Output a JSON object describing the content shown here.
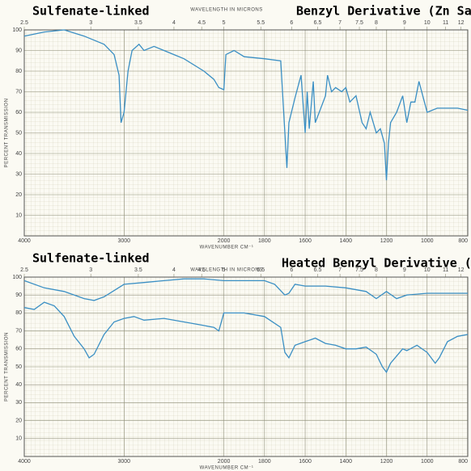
{
  "chart_data": [
    {
      "type": "line",
      "title": "Sulfenate-linked",
      "subtitle": "Benzyl Derivative (Zn Salt)",
      "x_label": "WAVENUMBER CM⁻¹",
      "x2_label": "WAVELENGTH IN MICRONS",
      "y_label": "PERCENT TRANSMISSION",
      "xlim": [
        4000,
        800
      ],
      "x_scale_break": 2000,
      "xticks": [
        4000,
        3000,
        2000,
        1800,
        1600,
        1400,
        1200,
        1000,
        800
      ],
      "x2ticks": [
        2.5,
        3,
        3.5,
        4,
        4.5,
        5,
        5.5,
        6,
        6.5,
        7,
        7.5,
        8,
        9,
        10,
        11,
        12
      ],
      "ylim": [
        0,
        100
      ],
      "yticks": [
        10,
        20,
        30,
        40,
        50,
        60,
        70,
        80,
        90,
        100
      ],
      "grid": true,
      "series": [
        {
          "color": "#3a8fc4",
          "x": [
            4000,
            3800,
            3600,
            3400,
            3200,
            3100,
            3050,
            3030,
            3000,
            2960,
            2920,
            2850,
            2800,
            2700,
            2600,
            2500,
            2400,
            2200,
            2100,
            2050,
            2000,
            1990,
            1950,
            1900,
            1800,
            1720,
            1700,
            1690,
            1680,
            1650,
            1620,
            1600,
            1590,
            1580,
            1560,
            1550,
            1500,
            1490,
            1470,
            1450,
            1420,
            1400,
            1380,
            1350,
            1320,
            1300,
            1280,
            1250,
            1230,
            1210,
            1200,
            1190,
            1180,
            1150,
            1120,
            1100,
            1080,
            1060,
            1040,
            1000,
            950,
            900,
            850,
            800
          ],
          "values": [
            97,
            99,
            100,
            97,
            93,
            88,
            78,
            55,
            60,
            80,
            90,
            93,
            90,
            92,
            90,
            88,
            86,
            80,
            76,
            72,
            71,
            88,
            90,
            87,
            86,
            85,
            50,
            33,
            55,
            67,
            78,
            50,
            70,
            52,
            75,
            55,
            68,
            78,
            70,
            72,
            70,
            72,
            65,
            68,
            55,
            52,
            60,
            50,
            52,
            45,
            27,
            45,
            55,
            60,
            68,
            55,
            65,
            65,
            75,
            60,
            62,
            62,
            62,
            61
          ]
        }
      ]
    },
    {
      "type": "line",
      "title": "Sulfenate-linked",
      "subtitle": "Heated Benzyl Derivative (Zn Salt)",
      "x_label": "WAVENUMBER CM⁻¹",
      "x2_label": "WAVELENGTH IN MICRONS",
      "y_label": "PERCENT TRANSMISSION",
      "xlim": [
        4000,
        800
      ],
      "x_scale_break": 2000,
      "xticks": [
        4000,
        3000,
        2000,
        1800,
        1600,
        1400,
        1200,
        1000,
        800
      ],
      "x2ticks": [
        2.5,
        3,
        3.5,
        4,
        4.5,
        5,
        5.5,
        6,
        6.5,
        7,
        7.5,
        8,
        9,
        10,
        11,
        12
      ],
      "ylim": [
        0,
        100
      ],
      "yticks": [
        10,
        20,
        30,
        40,
        50,
        60,
        70,
        80,
        90,
        100
      ],
      "grid": true,
      "series": [
        {
          "color": "#3a8fc4",
          "x": [
            4000,
            3800,
            3600,
            3400,
            3300,
            3200,
            3000,
            2800,
            2600,
            2400,
            2200,
            2000,
            1800,
            1750,
            1700,
            1680,
            1650,
            1600,
            1500,
            1400,
            1300,
            1250,
            1200,
            1150,
            1100,
            1000,
            900,
            800
          ],
          "values": [
            98,
            94,
            92,
            88,
            87,
            89,
            96,
            97,
            98,
            99,
            99,
            98,
            98,
            96,
            90,
            91,
            96,
            95,
            95,
            94,
            92,
            88,
            92,
            88,
            90,
            91,
            91,
            91
          ]
        },
        {
          "color": "#3a8fc4",
          "x": [
            4000,
            3900,
            3800,
            3700,
            3600,
            3500,
            3400,
            3350,
            3300,
            3200,
            3100,
            3000,
            2900,
            2800,
            2600,
            2400,
            2200,
            2100,
            2050,
            2000,
            1900,
            1800,
            1720,
            1700,
            1680,
            1650,
            1600,
            1550,
            1500,
            1450,
            1400,
            1350,
            1300,
            1250,
            1220,
            1200,
            1180,
            1150,
            1120,
            1100,
            1050,
            1000,
            960,
            940,
            900,
            850,
            800
          ],
          "values": [
            83,
            82,
            86,
            84,
            78,
            67,
            60,
            55,
            57,
            68,
            75,
            77,
            78,
            76,
            77,
            75,
            73,
            72,
            70,
            80,
            80,
            78,
            72,
            58,
            55,
            62,
            64,
            66,
            63,
            62,
            60,
            60,
            61,
            57,
            50,
            47,
            52,
            56,
            60,
            59,
            62,
            58,
            52,
            55,
            64,
            67,
            68
          ]
        }
      ]
    }
  ]
}
